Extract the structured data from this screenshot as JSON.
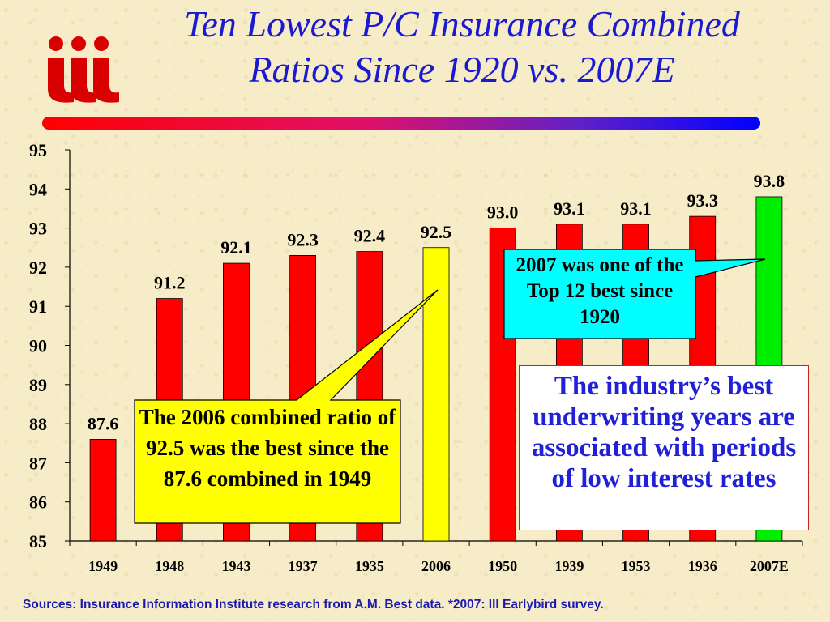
{
  "slide": {
    "title_line1": "Ten Lowest P/C Insurance Combined",
    "title_line2": "Ratios Since 1920 vs. 2007E",
    "logo_text": "iii",
    "source": "Sources: Insurance Information Institute research from A.M. Best data. *2007: III Earlybird survey."
  },
  "callouts": {
    "note_2006": "The 2006 combined ratio of 92.5 was the best since the 87.6 combined in 1949",
    "note_2007": "2007 was one of the Top 12 best since 1920",
    "industry": "The industry’s best underwriting years are associated with periods of low interest rates"
  },
  "colors": {
    "title": "#1a1ad0",
    "bar_default": "#ff0000",
    "bar_2006": "#ffff00",
    "bar_2007": "#00ee00",
    "callout_yellow": "#ffff00",
    "callout_cyan": "#00ffff",
    "industry_text": "#2020d8"
  },
  "chart_data": {
    "type": "bar",
    "categories": [
      "1949",
      "1948",
      "1943",
      "1937",
      "1935",
      "2006",
      "1950",
      "1939",
      "1953",
      "1936",
      "2007E"
    ],
    "values": [
      87.6,
      91.2,
      92.1,
      92.3,
      92.4,
      92.5,
      93.0,
      93.1,
      93.1,
      93.3,
      93.8
    ],
    "value_labels": [
      "87.6",
      "91.2",
      "92.1",
      "92.3",
      "92.4",
      "92.5",
      "93.0",
      "93.1",
      "93.1",
      "93.3",
      "93.8"
    ],
    "bar_colors": [
      "#ff0000",
      "#ff0000",
      "#ff0000",
      "#ff0000",
      "#ff0000",
      "#ffff00",
      "#ff0000",
      "#ff0000",
      "#ff0000",
      "#ff0000",
      "#00ee00"
    ],
    "ylim": [
      85,
      95
    ],
    "yticks": [
      "85",
      "86",
      "87",
      "88",
      "89",
      "90",
      "91",
      "92",
      "93",
      "94",
      "95"
    ],
    "xlabel": "",
    "ylabel": "",
    "grid": false
  }
}
